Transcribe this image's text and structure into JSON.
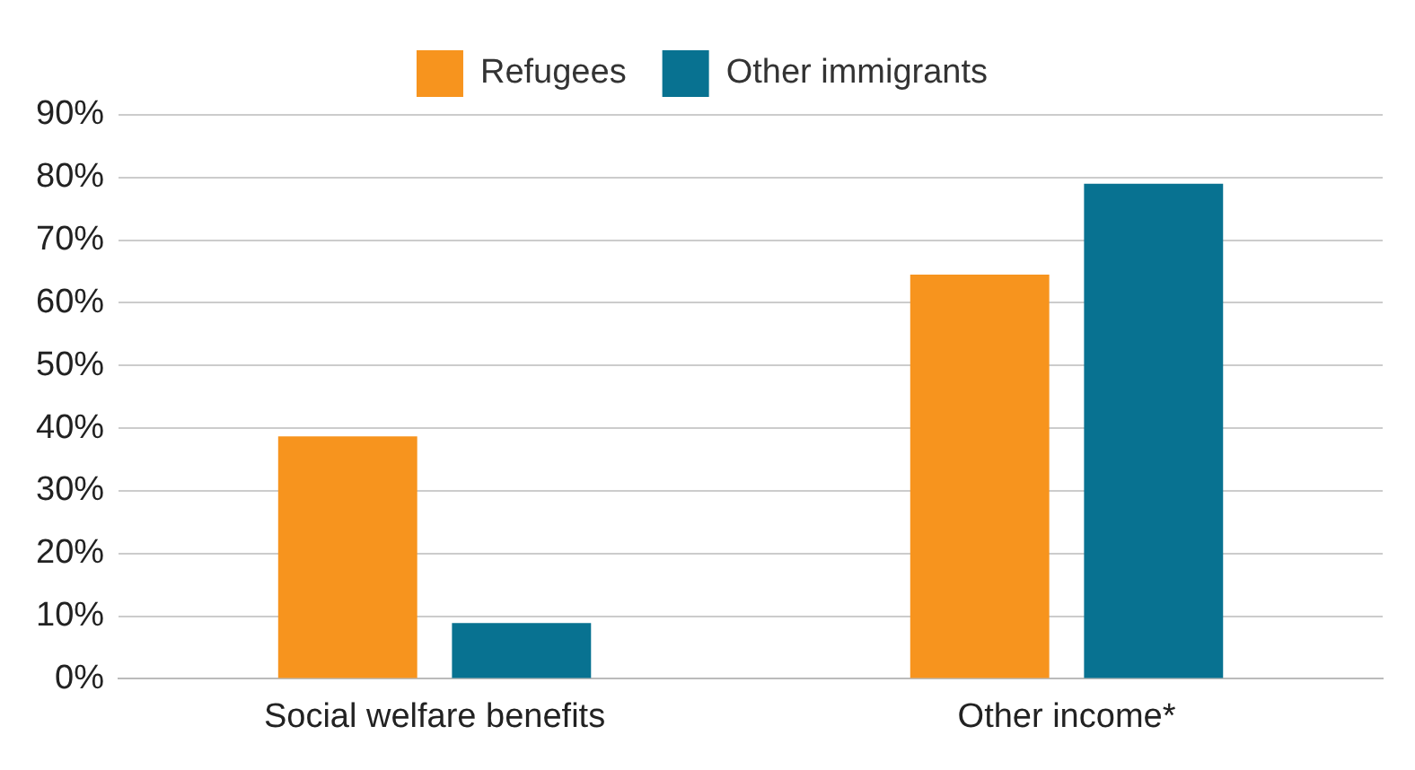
{
  "chart_data": {
    "type": "bar",
    "categories": [
      "Social welfare benefits",
      "Other income*"
    ],
    "series": [
      {
        "name": "Refugees",
        "color": "#f7941e",
        "values": [
          38.7,
          64.5
        ]
      },
      {
        "name": "Other immigrants",
        "color": "#087291",
        "values": [
          8.9,
          79
        ]
      }
    ],
    "ylim": [
      0,
      90
    ],
    "yticks": [
      {
        "value": 0,
        "label": "0%"
      },
      {
        "value": 10,
        "label": "10%"
      },
      {
        "value": 20,
        "label": "20%"
      },
      {
        "value": 30,
        "label": "30%"
      },
      {
        "value": 40,
        "label": "40%"
      },
      {
        "value": 50,
        "label": "50%"
      },
      {
        "value": 60,
        "label": "60%"
      },
      {
        "value": 70,
        "label": "70%"
      },
      {
        "value": 80,
        "label": "80%"
      },
      {
        "value": 90,
        "label": "90%"
      }
    ],
    "grid": "y",
    "legend": "top"
  }
}
